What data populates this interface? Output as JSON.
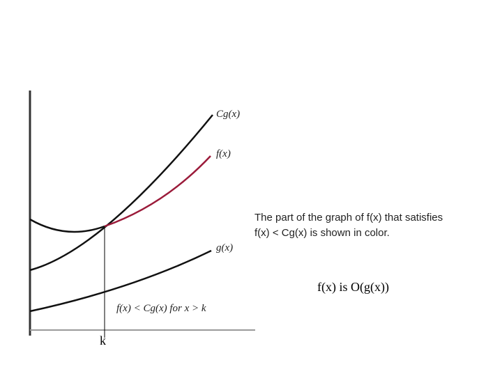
{
  "labels": {
    "cg": "Cg(x)",
    "f": "f(x)",
    "g": "g(x)",
    "k": "k"
  },
  "caption": {
    "line1": "The part of the graph of f(x) that satisfies",
    "line2": "f(x) < Cg(x) is shown in color."
  },
  "region_note": "f(x) < Cg(x) for x > k",
  "statement": "f(x) is O(g(x))"
}
